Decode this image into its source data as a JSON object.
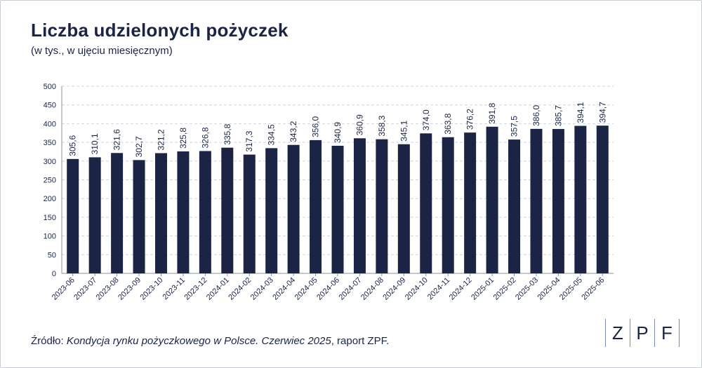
{
  "title": "Liczba udzielonych pożyczek",
  "subtitle": "(w tys., w ujęciu miesięcznym)",
  "source": {
    "prefix": "Źródło: ",
    "italic": "Kondycja rynku pożyczkowego w Polsce. Czerwiec 2025",
    "suffix": ", raport ZPF."
  },
  "logo": {
    "letters": [
      "Z",
      "P",
      "F"
    ]
  },
  "colors": {
    "bar": "#1b2444",
    "grid": "#cfd3da",
    "text": "#1b2444"
  },
  "chart_data": {
    "type": "bar",
    "categories": [
      "2023-06",
      "2023-07",
      "2023-08",
      "2023-09",
      "2023-10",
      "2023-11",
      "2023-12",
      "2024-01",
      "2024-02",
      "2024-03",
      "2024-04",
      "2024-05",
      "2024-06",
      "2024-07",
      "2024-08",
      "2024-09",
      "2024-10",
      "2024-11",
      "2024-12",
      "2025-01",
      "2025-02",
      "2025-03",
      "2025-04",
      "2025-05",
      "2025-06"
    ],
    "values": [
      305.6,
      310.1,
      321.6,
      302.7,
      321.2,
      325.8,
      326.8,
      335.8,
      317.3,
      334.5,
      343.2,
      356.0,
      340.9,
      360.9,
      358.3,
      345.1,
      374.0,
      363.8,
      376.2,
      391.8,
      357.5,
      386.0,
      385.7,
      394.1,
      394.7
    ],
    "labels": [
      "305,6",
      "310,1",
      "321,6",
      "302,7",
      "321,2",
      "325,8",
      "326,8",
      "335,8",
      "317,3",
      "334,5",
      "343,2",
      "356,0",
      "340,9",
      "360,9",
      "358,3",
      "345,1",
      "374,0",
      "363,8",
      "376,2",
      "391,8",
      "357,5",
      "386,0",
      "385,7",
      "394,1",
      "394,7"
    ],
    "yticks": [
      0,
      50,
      100,
      150,
      200,
      250,
      300,
      350,
      400,
      450,
      500
    ],
    "ylim": [
      0,
      500
    ],
    "grid": true,
    "legend": "none"
  }
}
